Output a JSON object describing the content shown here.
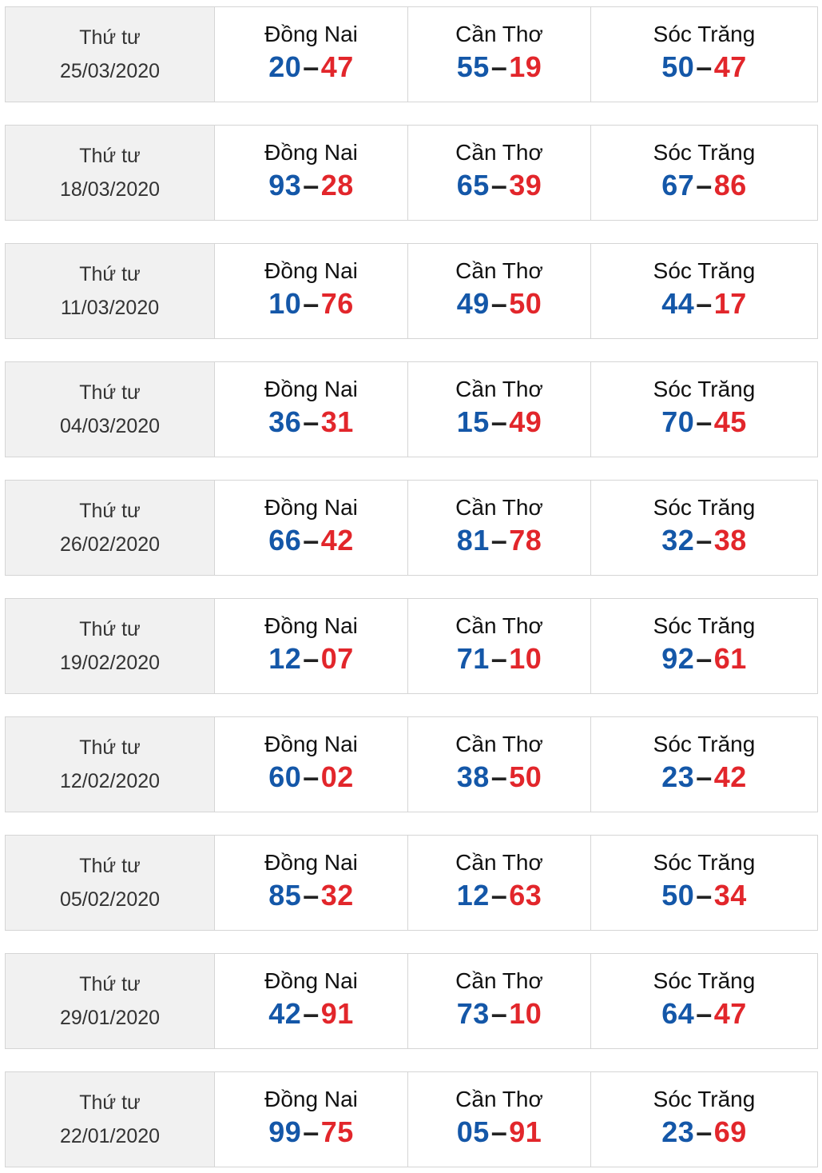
{
  "colors": {
    "first_number": "#1457a8",
    "second_number": "#e2262b",
    "date_background": "#f1f1f1",
    "border": "#d5d5d5"
  },
  "rows": [
    {
      "weekday": "Thứ tư",
      "date": "25/03/2020",
      "results": [
        {
          "province": "Đồng Nai",
          "a": "20",
          "b": "47"
        },
        {
          "province": "Cần Thơ",
          "a": "55",
          "b": "19"
        },
        {
          "province": "Sóc Trăng",
          "a": "50",
          "b": "47"
        }
      ]
    },
    {
      "weekday": "Thứ tư",
      "date": "18/03/2020",
      "results": [
        {
          "province": "Đồng Nai",
          "a": "93",
          "b": "28"
        },
        {
          "province": "Cần Thơ",
          "a": "65",
          "b": "39"
        },
        {
          "province": "Sóc Trăng",
          "a": "67",
          "b": "86"
        }
      ]
    },
    {
      "weekday": "Thứ tư",
      "date": "11/03/2020",
      "results": [
        {
          "province": "Đồng Nai",
          "a": "10",
          "b": "76"
        },
        {
          "province": "Cần Thơ",
          "a": "49",
          "b": "50"
        },
        {
          "province": "Sóc Trăng",
          "a": "44",
          "b": "17"
        }
      ]
    },
    {
      "weekday": "Thứ tư",
      "date": "04/03/2020",
      "results": [
        {
          "province": "Đồng Nai",
          "a": "36",
          "b": "31"
        },
        {
          "province": "Cần Thơ",
          "a": "15",
          "b": "49"
        },
        {
          "province": "Sóc Trăng",
          "a": "70",
          "b": "45"
        }
      ]
    },
    {
      "weekday": "Thứ tư",
      "date": "26/02/2020",
      "results": [
        {
          "province": "Đồng Nai",
          "a": "66",
          "b": "42"
        },
        {
          "province": "Cần Thơ",
          "a": "81",
          "b": "78"
        },
        {
          "province": "Sóc Trăng",
          "a": "32",
          "b": "38"
        }
      ]
    },
    {
      "weekday": "Thứ tư",
      "date": "19/02/2020",
      "results": [
        {
          "province": "Đồng Nai",
          "a": "12",
          "b": "07"
        },
        {
          "province": "Cần Thơ",
          "a": "71",
          "b": "10"
        },
        {
          "province": "Sóc Trăng",
          "a": "92",
          "b": "61"
        }
      ]
    },
    {
      "weekday": "Thứ tư",
      "date": "12/02/2020",
      "results": [
        {
          "province": "Đồng Nai",
          "a": "60",
          "b": "02"
        },
        {
          "province": "Cần Thơ",
          "a": "38",
          "b": "50"
        },
        {
          "province": "Sóc Trăng",
          "a": "23",
          "b": "42"
        }
      ]
    },
    {
      "weekday": "Thứ tư",
      "date": "05/02/2020",
      "results": [
        {
          "province": "Đồng Nai",
          "a": "85",
          "b": "32"
        },
        {
          "province": "Cần Thơ",
          "a": "12",
          "b": "63"
        },
        {
          "province": "Sóc Trăng",
          "a": "50",
          "b": "34"
        }
      ]
    },
    {
      "weekday": "Thứ tư",
      "date": "29/01/2020",
      "results": [
        {
          "province": "Đồng Nai",
          "a": "42",
          "b": "91"
        },
        {
          "province": "Cần Thơ",
          "a": "73",
          "b": "10"
        },
        {
          "province": "Sóc Trăng",
          "a": "64",
          "b": "47"
        }
      ]
    },
    {
      "weekday": "Thứ tư",
      "date": "22/01/2020",
      "results": [
        {
          "province": "Đồng Nai",
          "a": "99",
          "b": "75"
        },
        {
          "province": "Cần Thơ",
          "a": "05",
          "b": "91"
        },
        {
          "province": "Sóc Trăng",
          "a": "23",
          "b": "69"
        }
      ]
    }
  ]
}
